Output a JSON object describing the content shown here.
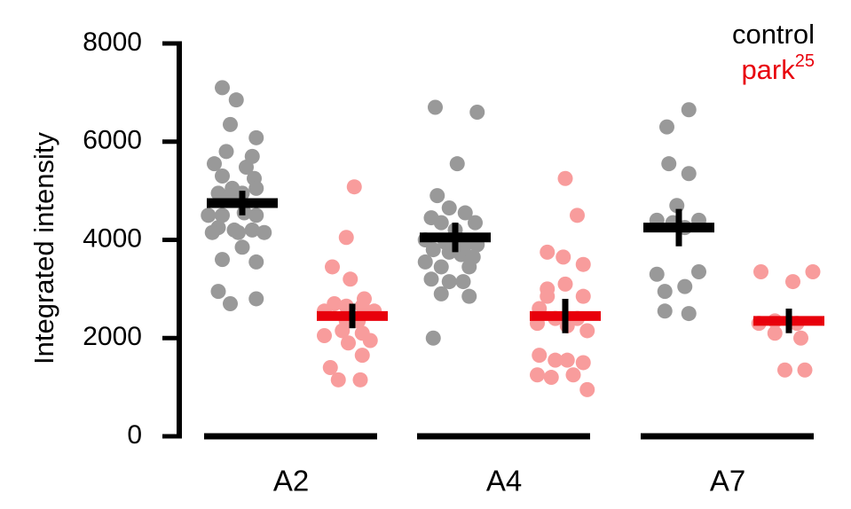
{
  "chart_data": {
    "type": "scatter",
    "title": "",
    "xlabel": "",
    "ylabel": "Integrated intensity",
    "ylim": [
      0,
      8000
    ],
    "yticks": [
      "0",
      "2000",
      "4000",
      "6000",
      "8000"
    ],
    "categories": [
      "A2",
      "A4",
      "A7"
    ],
    "grid": false,
    "legend": {
      "position": "top-right",
      "entries": [
        {
          "base": "control",
          "sup": "",
          "color": "#000000"
        },
        {
          "base": "park",
          "sup": "25",
          "color": "#e8000b"
        }
      ]
    },
    "colors": {
      "control_points": "#999999",
      "park_points": "#f89c9c",
      "control_mean": "#000000",
      "park_mean": "#e8000b",
      "error_bar": "#000000"
    },
    "groups": [
      {
        "category": "A2",
        "control": {
          "mean": 4750,
          "sem": 250,
          "points": [
            [
              -0.5,
              7100
            ],
            [
              -0.15,
              6850
            ],
            [
              -0.3,
              6350
            ],
            [
              0.35,
              6080
            ],
            [
              -0.4,
              5800
            ],
            [
              0.25,
              5700
            ],
            [
              -0.7,
              5550
            ],
            [
              0.1,
              5480
            ],
            [
              -0.5,
              5300
            ],
            [
              0.3,
              5250
            ],
            [
              -0.25,
              5050
            ],
            [
              0.35,
              5050
            ],
            [
              -0.6,
              4950
            ],
            [
              -0.3,
              4900
            ],
            [
              0.0,
              4950
            ],
            [
              -0.85,
              4500
            ],
            [
              -0.5,
              4500
            ],
            [
              0.05,
              4550
            ],
            [
              0.35,
              4500
            ],
            [
              -0.6,
              4250
            ],
            [
              -0.2,
              4200
            ],
            [
              0.25,
              4200
            ],
            [
              -0.75,
              4150
            ],
            [
              -0.1,
              4150
            ],
            [
              0.55,
              4150
            ],
            [
              0.0,
              3850
            ],
            [
              -0.5,
              3600
            ],
            [
              0.35,
              3550
            ],
            [
              -0.6,
              2950
            ],
            [
              -0.3,
              2700
            ],
            [
              0.35,
              2800
            ]
          ]
        },
        "park": {
          "mean": 2450,
          "sem": 250,
          "points": [
            [
              0.05,
              5080
            ],
            [
              -0.15,
              4050
            ],
            [
              -0.5,
              3450
            ],
            [
              -0.05,
              3200
            ],
            [
              0.3,
              2800
            ],
            [
              -0.45,
              2700
            ],
            [
              -0.15,
              2650
            ],
            [
              0.25,
              2650
            ],
            [
              0.55,
              2550
            ],
            [
              -0.7,
              2550
            ],
            [
              -0.15,
              2350
            ],
            [
              0.15,
              2350
            ],
            [
              -0.7,
              2050
            ],
            [
              -0.25,
              2150
            ],
            [
              0.25,
              2100
            ],
            [
              -0.1,
              1900
            ],
            [
              0.45,
              1950
            ],
            [
              0.25,
              1650
            ],
            [
              -0.55,
              1400
            ],
            [
              -0.35,
              1150
            ],
            [
              0.2,
              1150
            ]
          ]
        }
      },
      {
        "category": "A4",
        "control": {
          "mean": 4050,
          "sem": 300,
          "points": [
            [
              -0.5,
              6700
            ],
            [
              0.55,
              6600
            ],
            [
              0.05,
              5550
            ],
            [
              -0.45,
              4900
            ],
            [
              -0.15,
              4650
            ],
            [
              0.25,
              4550
            ],
            [
              -0.6,
              4450
            ],
            [
              -0.35,
              4350
            ],
            [
              0.0,
              4200
            ],
            [
              0.5,
              4350
            ],
            [
              -0.75,
              4000
            ],
            [
              -0.25,
              3950
            ],
            [
              0.25,
              3900
            ],
            [
              0.55,
              3900
            ],
            [
              -0.55,
              3800
            ],
            [
              -0.15,
              3750
            ],
            [
              0.15,
              3700
            ],
            [
              0.45,
              3650
            ],
            [
              -0.75,
              3550
            ],
            [
              -0.35,
              3450
            ],
            [
              0.35,
              3450
            ],
            [
              -0.6,
              3200
            ],
            [
              -0.15,
              3150
            ],
            [
              0.2,
              3150
            ],
            [
              -0.35,
              2900
            ],
            [
              0.35,
              2850
            ],
            [
              -0.55,
              2000
            ]
          ]
        },
        "park": {
          "mean": 2450,
          "sem": 350,
          "points": [
            [
              0.0,
              5250
            ],
            [
              0.3,
              4500
            ],
            [
              -0.45,
              3750
            ],
            [
              -0.05,
              3650
            ],
            [
              0.45,
              3500
            ],
            [
              -0.45,
              3000
            ],
            [
              0.0,
              3100
            ],
            [
              -0.45,
              2850
            ],
            [
              0.45,
              2850
            ],
            [
              -0.65,
              2600
            ],
            [
              -0.25,
              2400
            ],
            [
              0.3,
              2400
            ],
            [
              -0.7,
              2300
            ],
            [
              0.05,
              2250
            ],
            [
              0.55,
              2150
            ],
            [
              -0.65,
              1650
            ],
            [
              -0.25,
              1550
            ],
            [
              0.05,
              1550
            ],
            [
              0.45,
              1500
            ],
            [
              -0.7,
              1250
            ],
            [
              -0.35,
              1200
            ],
            [
              0.2,
              1250
            ],
            [
              0.55,
              950
            ]
          ]
        }
      },
      {
        "category": "A7",
        "control": {
          "mean": 4250,
          "sem": 380,
          "points": [
            [
              0.25,
              6650
            ],
            [
              -0.3,
              6300
            ],
            [
              -0.25,
              5550
            ],
            [
              0.25,
              5350
            ],
            [
              -0.05,
              4700
            ],
            [
              -0.55,
              4400
            ],
            [
              -0.15,
              4350
            ],
            [
              0.5,
              4400
            ],
            [
              0.15,
              4250
            ],
            [
              -0.55,
              3300
            ],
            [
              0.5,
              3350
            ],
            [
              -0.35,
              2950
            ],
            [
              0.15,
              3050
            ],
            [
              -0.35,
              2550
            ],
            [
              0.25,
              2500
            ]
          ]
        },
        "park": {
          "mean": 2350,
          "sem": 250,
          "points": [
            [
              -0.7,
              3350
            ],
            [
              0.1,
              3150
            ],
            [
              0.6,
              3350
            ],
            [
              -0.75,
              2300
            ],
            [
              -0.35,
              2350
            ],
            [
              0.2,
              2300
            ],
            [
              -0.35,
              2100
            ],
            [
              0.3,
              2000
            ],
            [
              -0.1,
              1350
            ],
            [
              0.4,
              1350
            ]
          ]
        }
      }
    ]
  }
}
